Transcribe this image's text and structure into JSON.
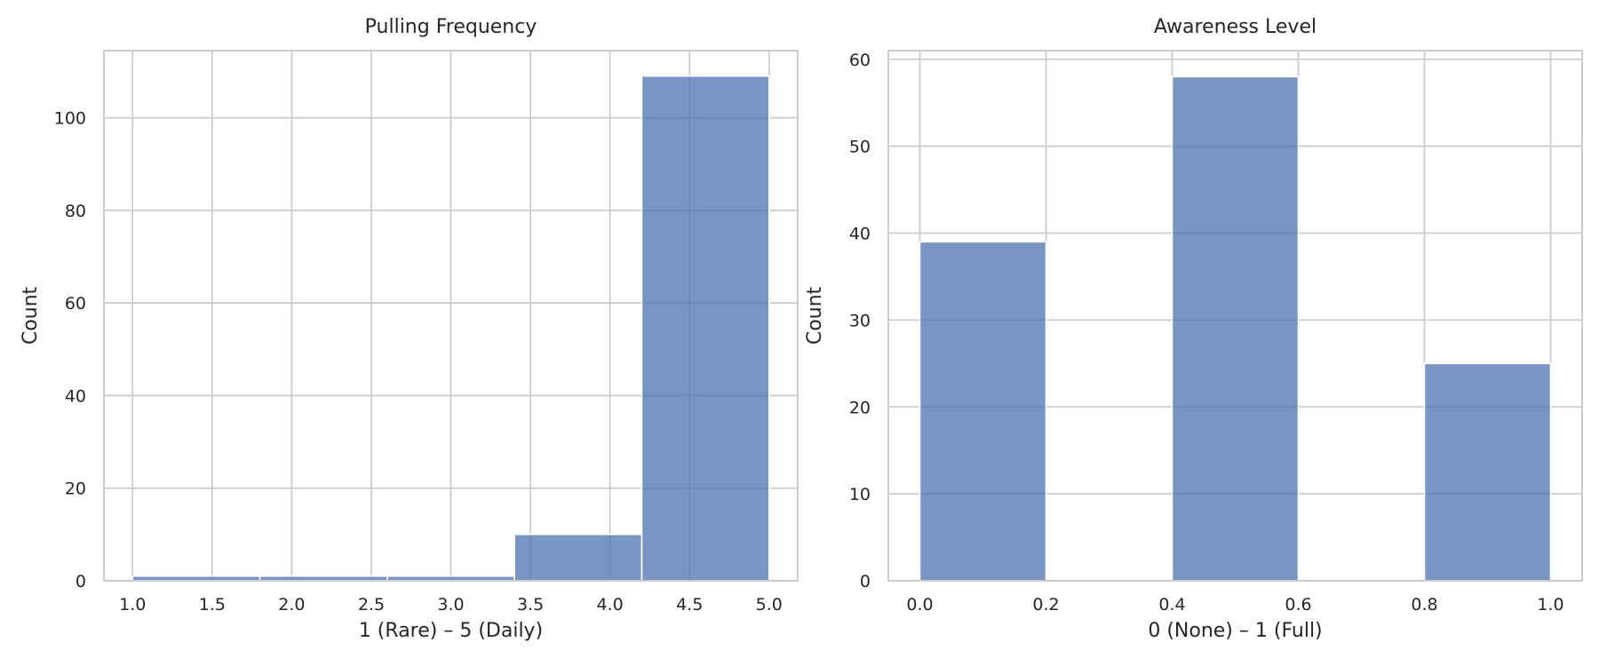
{
  "chart_data": [
    {
      "type": "bar",
      "title": "Pulling Frequency",
      "xlabel": "1 (Rare) – 5 (Daily)",
      "ylabel": "Count",
      "bins": [
        {
          "x0": 1.0,
          "x1": 1.8,
          "count": 1
        },
        {
          "x0": 1.8,
          "x1": 2.6,
          "count": 1
        },
        {
          "x0": 2.6,
          "x1": 3.4,
          "count": 1
        },
        {
          "x0": 3.4,
          "x1": 4.2,
          "count": 10
        },
        {
          "x0": 4.2,
          "x1": 5.0,
          "count": 109
        }
      ],
      "xlim": [
        0.82,
        5.18
      ],
      "ylim": [
        0,
        114.5
      ],
      "xticks": [
        "1.0",
        "1.5",
        "2.0",
        "2.5",
        "3.0",
        "3.5",
        "4.0",
        "4.5",
        "5.0"
      ],
      "yticks": [
        "0",
        "20",
        "40",
        "60",
        "80",
        "100"
      ],
      "grid": true,
      "color": "#4c72b0"
    },
    {
      "type": "bar",
      "title": "Awareness Level",
      "xlabel": "0 (None) – 1 (Full)",
      "ylabel": "Count",
      "bins": [
        {
          "x0": 0.0,
          "x1": 0.2,
          "count": 39
        },
        {
          "x0": 0.2,
          "x1": 0.4,
          "count": 0
        },
        {
          "x0": 0.4,
          "x1": 0.6,
          "count": 58
        },
        {
          "x0": 0.6,
          "x1": 0.8,
          "count": 0
        },
        {
          "x0": 0.8,
          "x1": 1.0,
          "count": 25
        }
      ],
      "xlim": [
        -0.05,
        1.05
      ],
      "ylim": [
        0,
        61
      ],
      "xticks": [
        "0.0",
        "0.2",
        "0.4",
        "0.6",
        "0.8",
        "1.0"
      ],
      "yticks": [
        "0",
        "10",
        "20",
        "30",
        "40",
        "50",
        "60"
      ],
      "grid": true,
      "color": "#4c72b0"
    }
  ]
}
